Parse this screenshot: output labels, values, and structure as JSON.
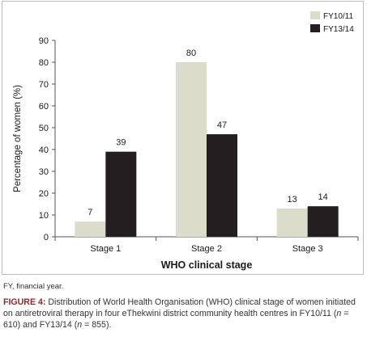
{
  "chart_data": {
    "type": "bar",
    "categories": [
      "Stage 1",
      "Stage 2",
      "Stage 3"
    ],
    "series": [
      {
        "name": "FY10/11",
        "color": "#dcdccb",
        "values": [
          7,
          80,
          13
        ]
      },
      {
        "name": "FY13/14",
        "color": "#231f20",
        "values": [
          39,
          47,
          14
        ]
      }
    ],
    "data_labels": [
      [
        "7",
        "80",
        "13"
      ],
      [
        "39",
        "47",
        "14"
      ]
    ],
    "xlabel": "WHO clinical stage",
    "ylabel": "Percentage of women (%)",
    "ylim": [
      0,
      90
    ],
    "yticks": [
      0,
      10,
      20,
      30,
      40,
      50,
      60,
      70,
      80,
      90
    ],
    "grid": false,
    "legend_position": "top-right"
  },
  "footnote": "FY, financial year.",
  "caption": {
    "label": "FIGURE 4:",
    "text_1": " Distribution of World Health Organisation (WHO) clinical stage of women initiated on antiretroviral therapy in four eThekwini district community health centres in FY10/11 (",
    "n_symbol_1": "n",
    "text_2": " = 610) and FY13/14 (",
    "n_symbol_2": "n",
    "text_3": " = 855)."
  }
}
